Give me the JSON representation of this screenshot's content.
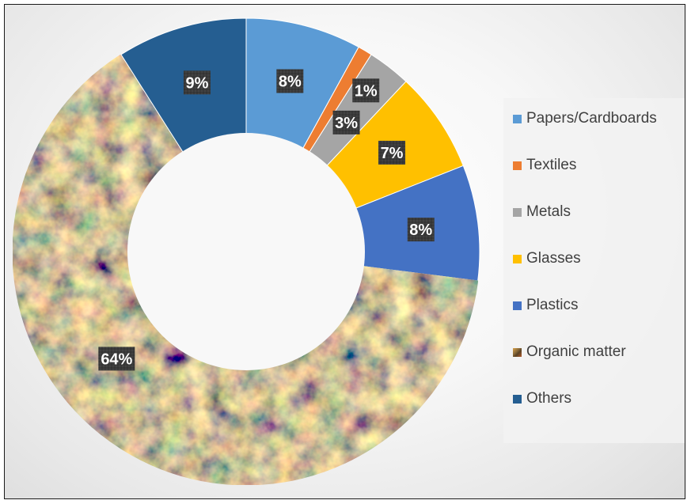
{
  "chart_data": {
    "type": "pie",
    "style": "donut",
    "title": "",
    "categories": [
      "Papers/Cardboards",
      "Textiles",
      "Metals",
      "Glasses",
      "Plastics",
      "Organic matter",
      "Others"
    ],
    "values": [
      8,
      1,
      3,
      7,
      8,
      64,
      9
    ],
    "data_labels": [
      "8%",
      "1%",
      "3%",
      "7%",
      "8%",
      "64%",
      "9%"
    ],
    "colors": [
      "#5b9bd5",
      "#ed7d31",
      "#a5a5a5",
      "#ffc000",
      "#4472c4",
      "#7a5a34",
      "#255e91"
    ],
    "organic_fill": "photo-texture",
    "legend_position": "right",
    "start_angle_deg": 0,
    "direction": "clockwise"
  }
}
